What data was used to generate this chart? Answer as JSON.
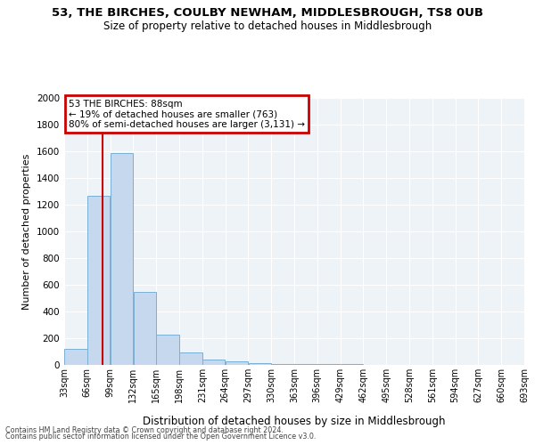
{
  "title": "53, THE BIRCHES, COULBY NEWHAM, MIDDLESBROUGH, TS8 0UB",
  "subtitle": "Size of property relative to detached houses in Middlesbrough",
  "xlabel": "Distribution of detached houses by size in Middlesbrough",
  "ylabel": "Number of detached properties",
  "property_size": 88,
  "annotation_title": "53 THE BIRCHES: 88sqm",
  "annotation_line1": "← 19% of detached houses are smaller (763)",
  "annotation_line2": "80% of semi-detached houses are larger (3,131) →",
  "footer1": "Contains HM Land Registry data © Crown copyright and database right 2024.",
  "footer2": "Contains public sector information licensed under the Open Government Licence v3.0.",
  "bar_color": "#c5d8ed",
  "bar_edge_color": "#7aafd4",
  "line_color": "#cc0000",
  "annotation_box_color": "#cc0000",
  "bins": [
    33,
    66,
    99,
    132,
    165,
    198,
    231,
    264,
    297,
    330,
    363,
    396,
    429,
    462,
    495,
    528,
    561,
    594,
    627,
    660,
    693
  ],
  "counts": [
    120,
    1265,
    1590,
    545,
    225,
    95,
    40,
    30,
    15,
    10,
    8,
    5,
    4,
    3,
    2,
    2,
    1,
    1,
    1,
    1
  ],
  "ylim": [
    0,
    2000
  ],
  "yticks": [
    0,
    200,
    400,
    600,
    800,
    1000,
    1200,
    1400,
    1600,
    1800,
    2000
  ],
  "bg_color": "#eef3f8",
  "plot_bg_color": "#eef3f8"
}
